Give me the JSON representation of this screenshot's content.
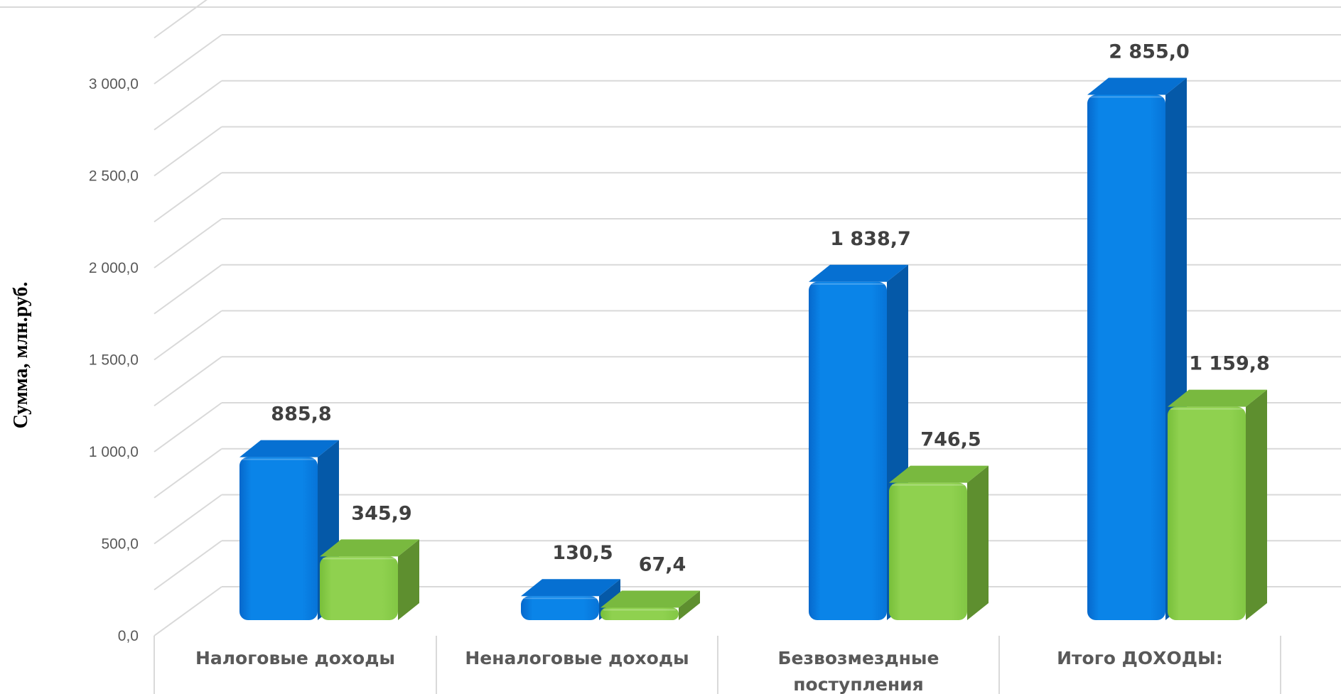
{
  "chart_data": {
    "type": "bar",
    "ylabel": "Сумма, млн.руб.",
    "ylim": [
      0,
      3000
    ],
    "ytick_step": 500,
    "ytick_labels": [
      "0,0",
      "500,0",
      "1 000,0",
      "1 500,0",
      "2 000,0",
      "2 500,0",
      "3 000,0"
    ],
    "grid": true,
    "categories": [
      [
        "Налоговые доходы"
      ],
      [
        "Неналоговые доходы"
      ],
      [
        "Безвозмездные",
        "поступления"
      ],
      [
        "Итого ДОХОДЫ:"
      ]
    ],
    "series": [
      {
        "values": [
          885.8,
          130.5,
          1838.7,
          2855.0
        ],
        "labels": [
          "885,8",
          "130,5",
          "1 838,7",
          "2 855,0"
        ],
        "color": "#0a84e8"
      },
      {
        "values": [
          345.9,
          67.4,
          746.5,
          1159.8
        ],
        "labels": [
          "345,9",
          "67,4",
          "746,5",
          "1 159,8"
        ],
        "color": "#8fd14f"
      }
    ]
  }
}
